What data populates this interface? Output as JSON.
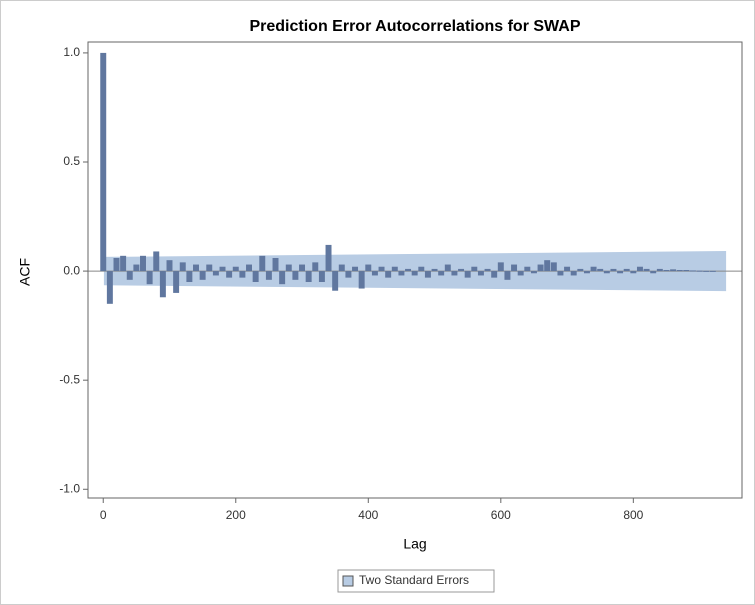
{
  "chart_data": {
    "type": "needle",
    "title": "Prediction Error Autocorrelations for SWAP",
    "x_label": "Lag",
    "y_label": "ACF",
    "x": [
      0,
      10,
      20,
      30,
      40,
      50,
      60,
      70,
      80,
      90,
      100,
      110,
      120,
      130,
      140,
      150,
      160,
      170,
      180,
      190,
      200,
      210,
      220,
      230,
      240,
      250,
      260,
      270,
      280,
      290,
      300,
      310,
      320,
      330,
      340,
      350,
      360,
      370,
      380,
      390,
      400,
      410,
      420,
      430,
      440,
      450,
      460,
      470,
      480,
      490,
      500,
      510,
      520,
      530,
      540,
      550,
      560,
      570,
      580,
      590,
      600,
      610,
      620,
      630,
      640,
      650,
      660,
      670,
      680,
      690,
      700,
      710,
      720,
      730,
      740,
      750,
      760,
      770,
      780,
      790,
      800,
      810,
      820,
      830,
      840,
      850,
      860,
      870,
      880,
      890,
      900,
      910,
      920
    ],
    "values": [
      1.0,
      -0.15,
      0.06,
      0.07,
      -0.04,
      0.03,
      0.07,
      -0.06,
      0.09,
      -0.12,
      0.05,
      -0.1,
      0.04,
      -0.05,
      0.03,
      -0.04,
      0.03,
      -0.02,
      0.02,
      -0.03,
      0.02,
      -0.03,
      0.03,
      -0.05,
      0.07,
      -0.04,
      0.06,
      -0.06,
      0.03,
      -0.04,
      0.03,
      -0.05,
      0.04,
      -0.05,
      0.12,
      -0.09,
      0.03,
      -0.03,
      0.02,
      -0.08,
      0.03,
      -0.02,
      0.02,
      -0.03,
      0.02,
      -0.02,
      0.01,
      -0.02,
      0.02,
      -0.03,
      0.01,
      -0.02,
      0.03,
      -0.02,
      0.01,
      -0.03,
      0.02,
      -0.02,
      0.01,
      -0.03,
      0.04,
      -0.04,
      0.03,
      -0.02,
      0.02,
      -0.01,
      0.03,
      0.05,
      0.04,
      -0.02,
      0.02,
      -0.02,
      0.01,
      -0.01,
      0.02,
      0.01,
      -0.01,
      0.01,
      -0.01,
      0.01,
      -0.01,
      0.02,
      0.01,
      -0.01,
      0.01,
      0.005,
      0.008,
      0.005,
      0.005,
      0.003,
      0.002,
      0.001,
      0.001
    ],
    "color": "#60779f",
    "band": {
      "name": "Two Standard Errors",
      "color": "#b8cce4",
      "x": [
        1,
        940
      ],
      "upper": [
        0.065,
        0.092
      ],
      "lower": [
        -0.065,
        -0.092
      ]
    },
    "xlim": [
      -23,
      964
    ],
    "ylim": [
      -1.04,
      1.05
    ],
    "xticks": [
      0,
      200,
      400,
      600,
      800
    ],
    "yticks": [
      {
        "value": -1.0,
        "label": "-1.0"
      },
      -0.5,
      {
        "value": 0.0,
        "label": "0.0"
      },
      0.5,
      {
        "value": 1.0,
        "label": "1.0"
      }
    ]
  }
}
